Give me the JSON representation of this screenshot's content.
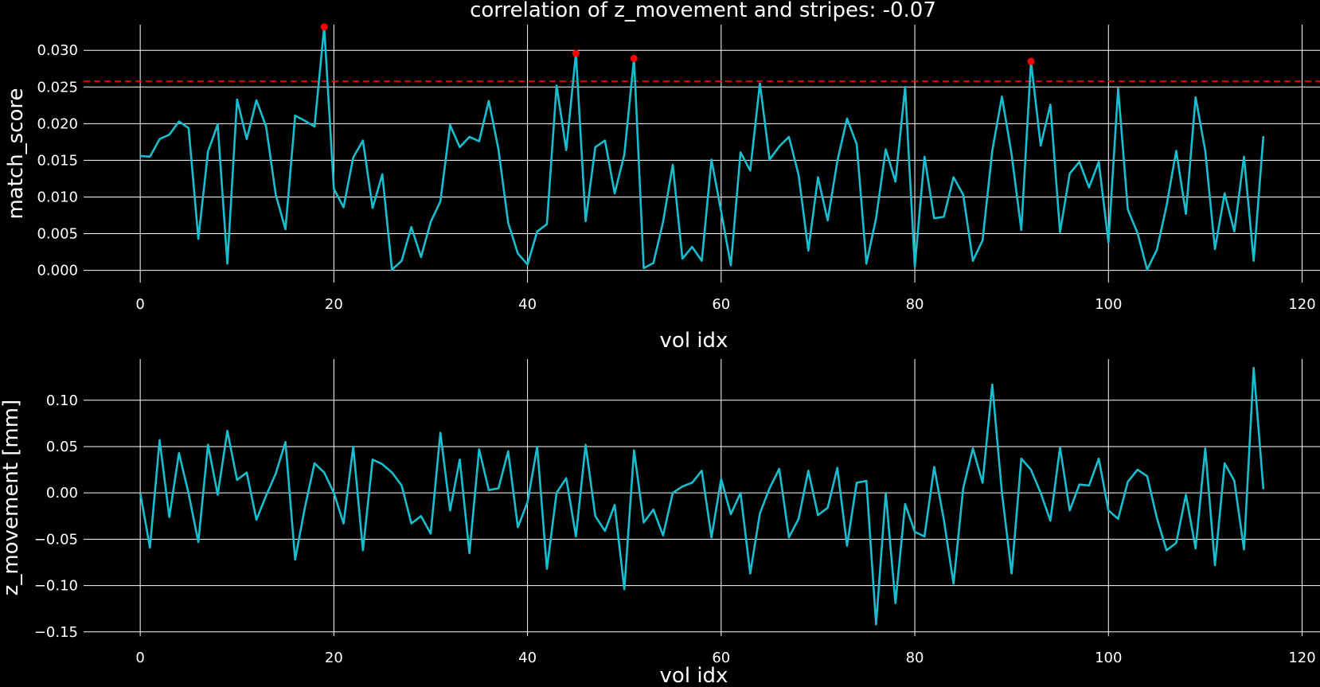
{
  "title": "correlation of z_movement and stripes: -0.07",
  "colors": {
    "background": "#000000",
    "series": "#17becf",
    "marker": "#ff0000",
    "threshold": "#ff0000",
    "grid": "#ffffff",
    "text": "#ffffff"
  },
  "chart_data": [
    {
      "type": "line",
      "xlabel": "vol idx",
      "ylabel": "match_score",
      "xlim": [
        -5.85,
        121.85
      ],
      "ylim": [
        -0.00167,
        0.0335
      ],
      "xticks": [
        0,
        20,
        40,
        60,
        80,
        100,
        120
      ],
      "xtick_labels": [
        "0",
        "20",
        "40",
        "60",
        "80",
        "100",
        "120"
      ],
      "yticks": [
        0,
        0.005,
        0.01,
        0.015,
        0.02,
        0.025,
        0.03
      ],
      "ytick_labels": [
        "0.000",
        "0.005",
        "0.010",
        "0.015",
        "0.020",
        "0.025",
        "0.030"
      ],
      "grid": true,
      "threshold": 0.0258,
      "x_start": 0,
      "values": [
        0.0156,
        0.0155,
        0.0179,
        0.0185,
        0.0203,
        0.0194,
        0.0043,
        0.0162,
        0.0199,
        0.0009,
        0.0233,
        0.0179,
        0.0232,
        0.0196,
        0.0103,
        0.0056,
        0.0211,
        0.0204,
        0.0196,
        0.0332,
        0.0111,
        0.0086,
        0.0154,
        0.0177,
        0.0085,
        0.0131,
        0.0001,
        0.0013,
        0.0059,
        0.0018,
        0.0066,
        0.0094,
        0.0198,
        0.0168,
        0.0182,
        0.0176,
        0.0231,
        0.0165,
        0.0065,
        0.0023,
        0.0008,
        0.0053,
        0.0063,
        0.0252,
        0.0164,
        0.0296,
        0.0067,
        0.0168,
        0.0177,
        0.0105,
        0.0158,
        0.0289,
        0.0003,
        0.001,
        0.0066,
        0.0144,
        0.0016,
        0.0032,
        0.0013,
        0.0151,
        0.008,
        0.0007,
        0.0161,
        0.0136,
        0.0255,
        0.0151,
        0.0169,
        0.0182,
        0.013,
        0.0027,
        0.0127,
        0.0068,
        0.0149,
        0.0207,
        0.0172,
        0.0009,
        0.0071,
        0.0165,
        0.0121,
        0.025,
        0.0005,
        0.0155,
        0.0071,
        0.0073,
        0.0127,
        0.0103,
        0.0013,
        0.0041,
        0.0163,
        0.0237,
        0.0158,
        0.0055,
        0.0285,
        0.017,
        0.0226,
        0.0052,
        0.0132,
        0.0148,
        0.0113,
        0.0148,
        0.0038,
        0.0248,
        0.0083,
        0.0051,
        0.0001,
        0.0028,
        0.0088,
        0.0163,
        0.0077,
        0.0236,
        0.0163,
        0.0029,
        0.0105,
        0.0053,
        0.0155,
        0.0013,
        0.0183
      ],
      "peaks": [
        {
          "x": 19,
          "y": 0.0332
        },
        {
          "x": 45,
          "y": 0.0296
        },
        {
          "x": 51,
          "y": 0.0289
        },
        {
          "x": 92,
          "y": 0.0285
        }
      ]
    },
    {
      "type": "line",
      "xlabel": "vol idx",
      "ylabel": "z_movement [mm]",
      "xlim": [
        -5.85,
        121.85
      ],
      "ylim": [
        -0.1545,
        0.1445
      ],
      "xticks": [
        0,
        20,
        40,
        60,
        80,
        100,
        120
      ],
      "xtick_labels": [
        "0",
        "20",
        "40",
        "60",
        "80",
        "100",
        "120"
      ],
      "yticks": [
        -0.15,
        -0.1,
        -0.05,
        0,
        0.05,
        0.1
      ],
      "ytick_labels": [
        "−0.15",
        "−0.10",
        "−0.05",
        "0.00",
        "0.05",
        "0.10"
      ],
      "grid": true,
      "x_start": 0,
      "values": [
        0.0,
        -0.059,
        0.057,
        -0.026,
        0.043,
        -0.001,
        -0.053,
        0.052,
        -0.002,
        0.067,
        0.014,
        0.022,
        -0.029,
        -0.003,
        0.021,
        0.055,
        -0.072,
        -0.016,
        0.032,
        0.022,
        0.0,
        -0.033,
        0.05,
        -0.062,
        0.036,
        0.031,
        0.022,
        0.008,
        -0.033,
        -0.025,
        -0.044,
        0.065,
        -0.019,
        0.036,
        -0.065,
        0.047,
        0.003,
        0.005,
        0.045,
        -0.037,
        -0.01,
        0.05,
        -0.082,
        0.0,
        0.016,
        -0.047,
        0.052,
        -0.025,
        -0.041,
        -0.013,
        -0.104,
        0.046,
        -0.032,
        -0.018,
        -0.046,
        0.0,
        0.007,
        0.011,
        0.024,
        -0.048,
        0.015,
        -0.023,
        0.0,
        -0.087,
        -0.022,
        0.005,
        0.026,
        -0.048,
        -0.028,
        0.024,
        -0.024,
        -0.016,
        0.027,
        -0.057,
        0.011,
        0.013,
        -0.142,
        0.0,
        -0.119,
        -0.012,
        -0.042,
        -0.047,
        0.028,
        -0.029,
        -0.098,
        0.005,
        0.048,
        0.011,
        0.117,
        0.0,
        -0.087,
        0.037,
        0.025,
        0.0,
        -0.03,
        0.049,
        -0.019,
        0.009,
        0.008,
        0.037,
        -0.019,
        -0.028,
        0.012,
        0.025,
        0.018,
        -0.027,
        -0.062,
        -0.054,
        -0.002,
        -0.06,
        0.048,
        -0.078,
        0.032,
        0.013,
        -0.061,
        0.135,
        0.004
      ]
    }
  ]
}
